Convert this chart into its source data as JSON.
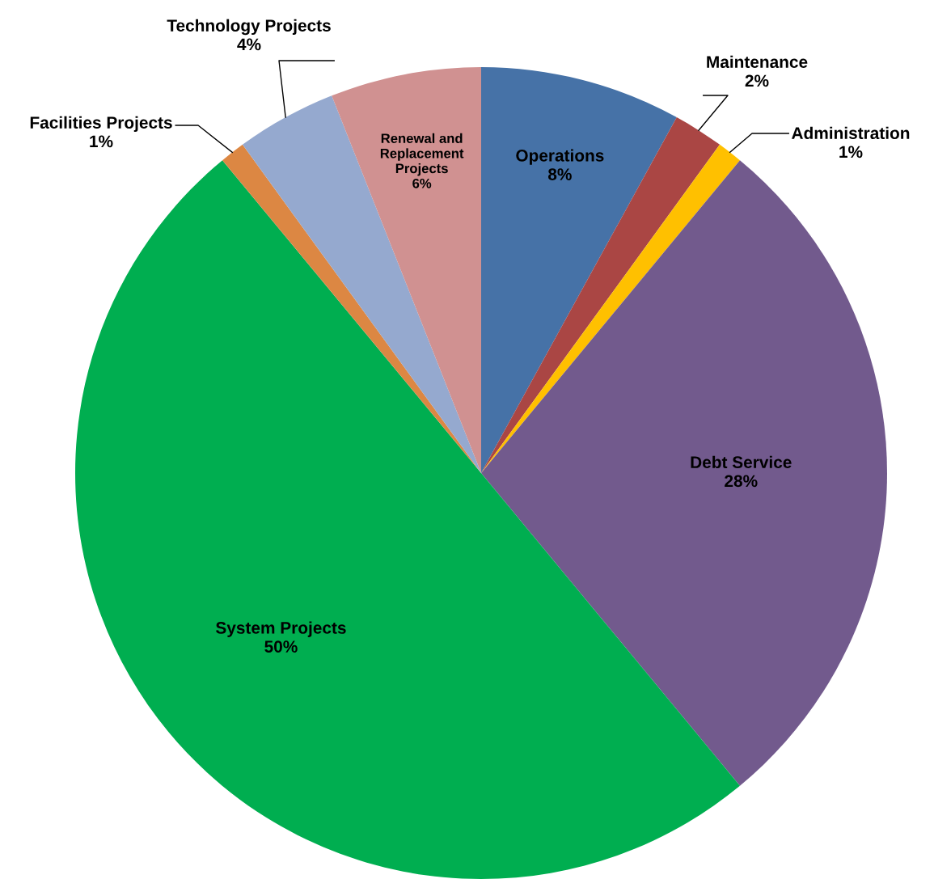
{
  "chart_data": {
    "type": "pie",
    "categories": [
      "Operations",
      "Maintenance",
      "Administration",
      "Debt Service",
      "System Projects",
      "Facilities Projects",
      "Technology Projects",
      "Renewal and\nReplacement\nProjects"
    ],
    "values": [
      8,
      2,
      1,
      28,
      50,
      1,
      4,
      6
    ],
    "value_labels": [
      "8%",
      "2%",
      "1%",
      "28%",
      "50%",
      "1%",
      "4%",
      "6%"
    ],
    "colors": [
      "#4672a7",
      "#aa4644",
      "#ffc000",
      "#725a8d",
      "#00ae50",
      "#dc8743",
      "#95a9cf",
      "#d09191"
    ]
  }
}
